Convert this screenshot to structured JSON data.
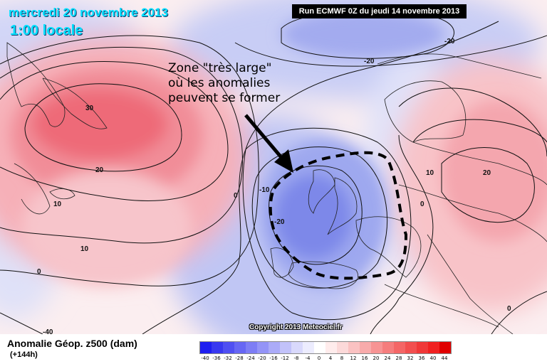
{
  "header": {
    "date": "mercredi 20 novembre 2013",
    "time": "1:00 locale",
    "run": "Run ECMWF 0Z du jeudi 14 novembre 2013"
  },
  "annotation": {
    "line1": "Zone \"très large\"",
    "line2": "où les anomalies",
    "line3": "peuvent se former"
  },
  "copyright": "Copyright 2013 Meteociel.fr",
  "footer": {
    "title": "Anomalie Géop. z500 (dam)",
    "subtitle": "(+144h)"
  },
  "legend": {
    "labels": [
      "-40",
      "-36",
      "-32",
      "-28",
      "-24",
      "-20",
      "-16",
      "-12",
      "-8",
      "-4",
      "0",
      "4",
      "8",
      "12",
      "16",
      "20",
      "24",
      "28",
      "32",
      "36",
      "40",
      "44"
    ],
    "colors": [
      "#1e1ef0",
      "#3838f0",
      "#4f4ff2",
      "#6666f4",
      "#7d7df5",
      "#9494f7",
      "#ababf8",
      "#c2c2fa",
      "#d9d9fc",
      "#ececfe",
      "#ffffff",
      "#ffecec",
      "#fcd9d9",
      "#fac2c2",
      "#f8abab",
      "#f79494",
      "#f57d7d",
      "#f46666",
      "#f24f4f",
      "#f03838",
      "#f02020",
      "#e00000"
    ]
  },
  "contour_labels": {
    "greenland_high": "30",
    "west_20": "20",
    "west_10a": "10",
    "west_10b": "10",
    "west_0": "0",
    "mid_0": "0",
    "trough_m10": "-10",
    "trough_m20": "-20",
    "north_m20a": "-20",
    "north_m20b": "-20",
    "east_0": "0",
    "east_10": "10",
    "east_20": "20",
    "se_0": "0",
    "sw_m40": "-40"
  }
}
